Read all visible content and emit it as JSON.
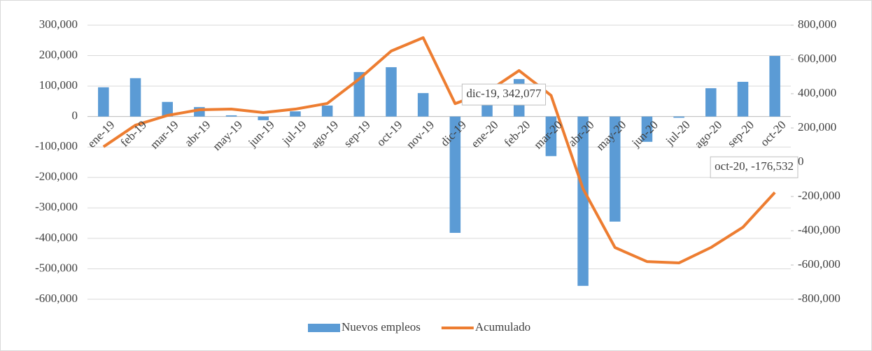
{
  "chart_data": {
    "type": "bar-line",
    "categories": [
      "ene-19",
      "feb-19",
      "mar-19",
      "abr-19",
      "may-19",
      "jun-19",
      "jul-19",
      "ago-19",
      "sep-19",
      "oct-19",
      "nov-19",
      "dic-19",
      "ene-20",
      "feb-20",
      "mar-20",
      "abr-20",
      "may-20",
      "jun-20",
      "jul-20",
      "ago-20",
      "sep-20",
      "oct-20"
    ],
    "series": [
      {
        "name": "Nuevos empleos",
        "type": "bar",
        "color": "#5b9bd5",
        "axis": "y",
        "values": [
          96000,
          126000,
          48000,
          31000,
          4000,
          -12000,
          17000,
          36000,
          146000,
          162000,
          77000,
          -382000,
          70000,
          123000,
          -130000,
          -556000,
          -345000,
          -83000,
          -4000,
          93000,
          114000,
          199000
        ]
      },
      {
        "name": "Acumulado",
        "type": "line",
        "color": "#ed7d31",
        "axis": "y2",
        "values": [
          90000,
          216000,
          273000,
          306000,
          310000,
          290000,
          310000,
          343000,
          486000,
          649000,
          727000,
          342077,
          410000,
          535000,
          390000,
          -155000,
          -498000,
          -580000,
          -588000,
          -498000,
          -380000,
          -176532
        ],
        "value_labels": [
          null,
          null,
          null,
          null,
          null,
          null,
          null,
          null,
          null,
          null,
          null,
          "dic-19, 342,077",
          null,
          null,
          null,
          null,
          null,
          null,
          null,
          null,
          null,
          "oct-20, -176,532"
        ]
      }
    ],
    "ylim": [
      -600000,
      300000
    ],
    "yticks": [
      {
        "value": -600000,
        "label": "-600,000"
      },
      {
        "value": -500000,
        "label": "-500,000"
      },
      {
        "value": -400000,
        "label": "-400,000"
      },
      {
        "value": -300000,
        "label": "-300,000"
      },
      {
        "value": -200000,
        "label": "-200,000"
      },
      {
        "value": -100000,
        "label": "-100,000"
      },
      0,
      {
        "value": 100000,
        "label": "100,000"
      },
      {
        "value": 200000,
        "label": "200,000"
      },
      {
        "value": 300000,
        "label": "300,000"
      }
    ],
    "y2lim": [
      -800000,
      800000
    ],
    "y2ticks": [
      {
        "value": -800000,
        "label": "-800,000"
      },
      {
        "value": -600000,
        "label": "-600,000"
      },
      {
        "value": -400000,
        "label": "-400,000"
      },
      {
        "value": -200000,
        "label": "-200,000"
      },
      0,
      {
        "value": 200000,
        "label": "200,000"
      },
      {
        "value": 400000,
        "label": "400,000"
      },
      {
        "value": 600000,
        "label": "600,000"
      },
      {
        "value": 800000,
        "label": "800,000"
      }
    ],
    "grid": true,
    "legend": "bottom"
  }
}
